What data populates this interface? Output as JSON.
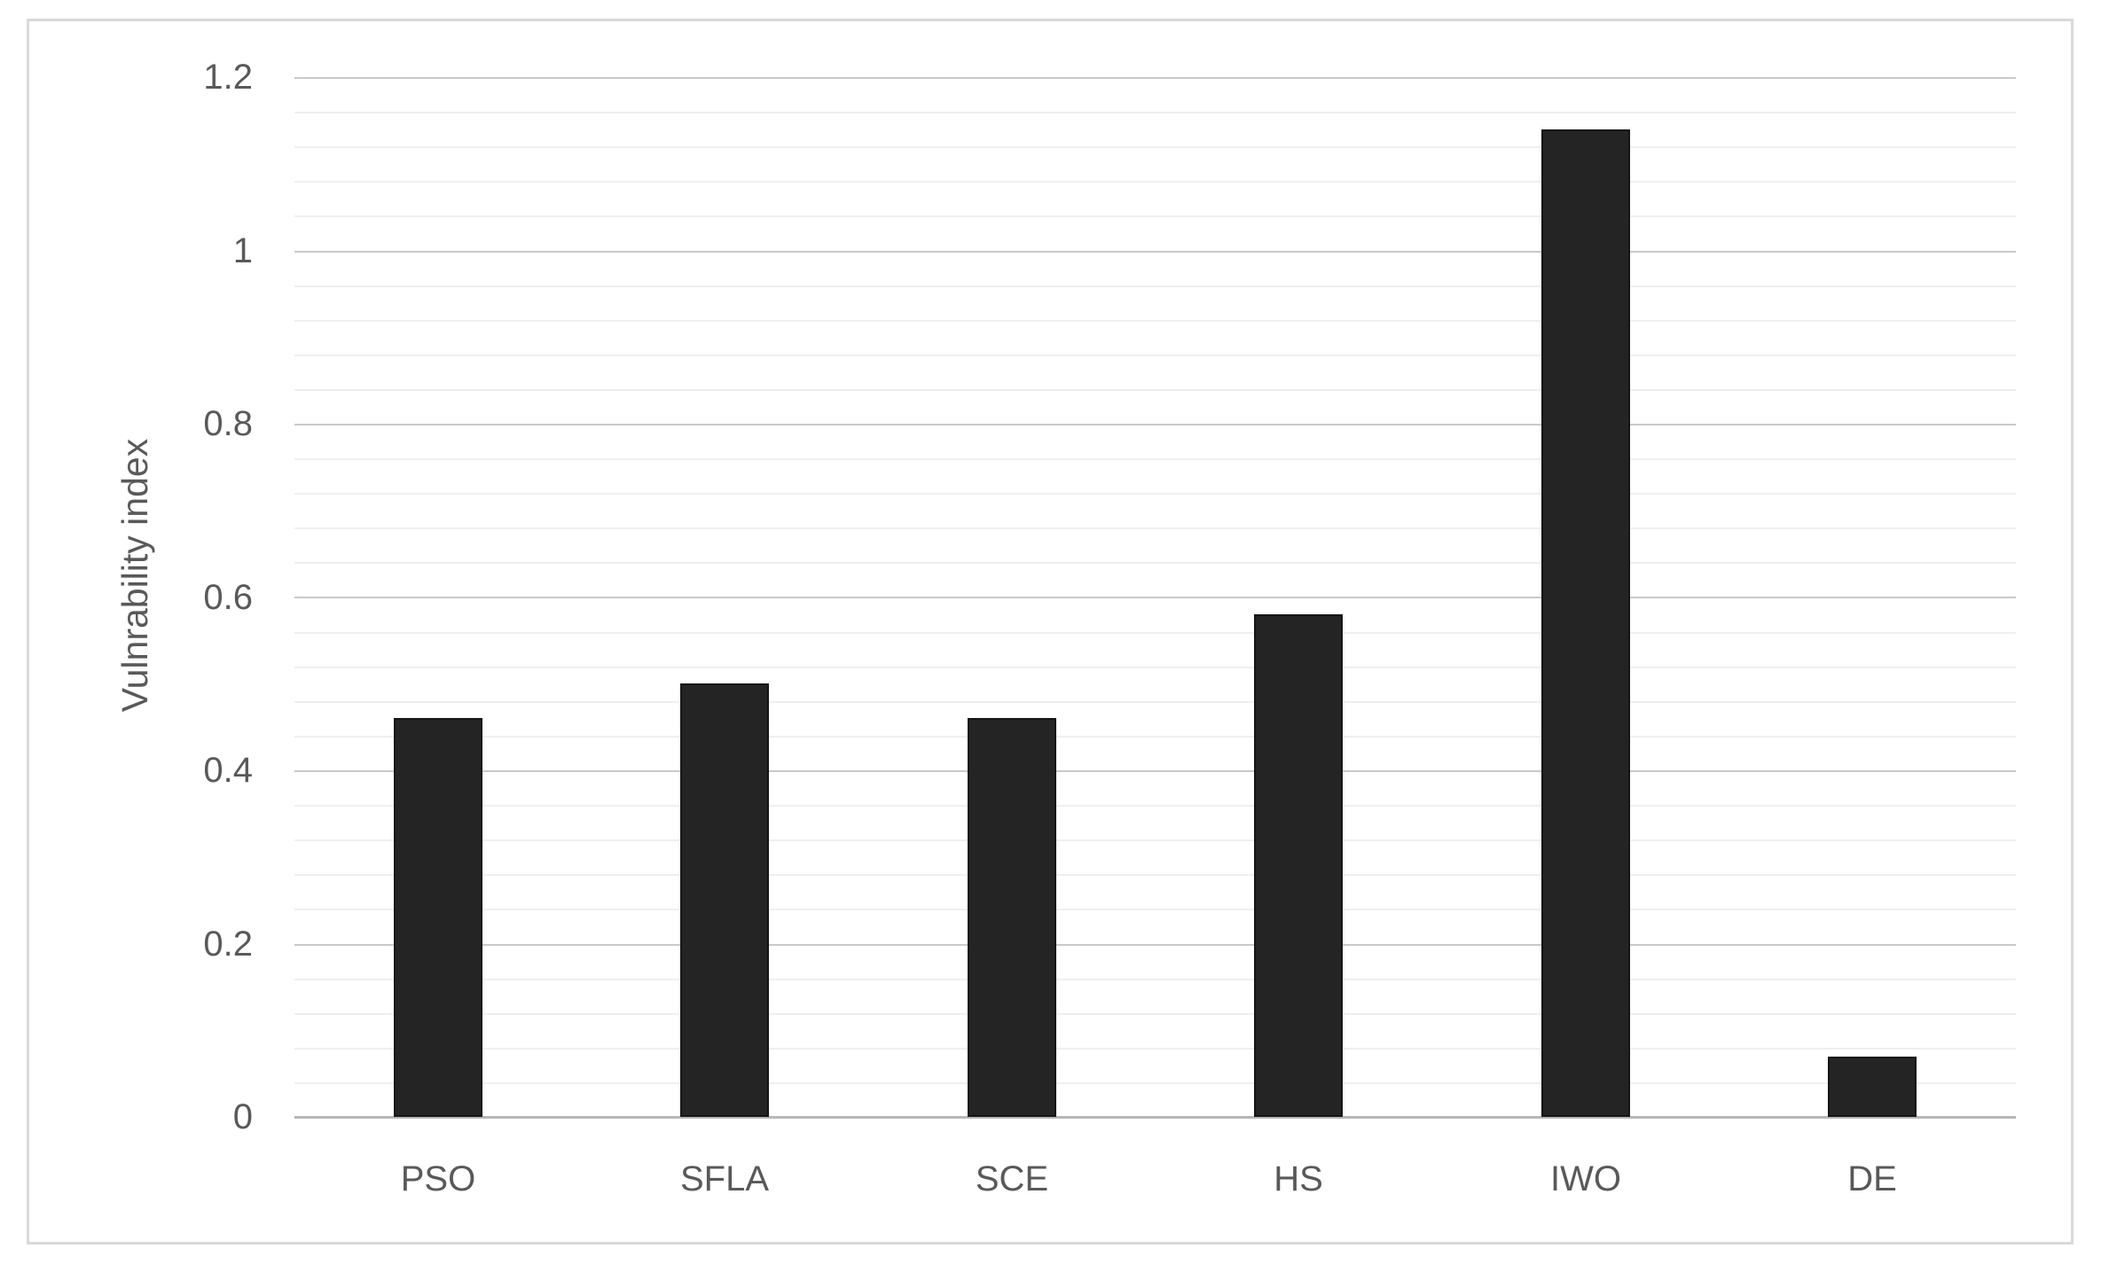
{
  "chart_data": {
    "type": "bar",
    "title": "",
    "categories": [
      "PSO",
      "SFLA",
      "SCE",
      "HS",
      "IWO",
      "DE"
    ],
    "values": [
      0.46,
      0.5,
      0.46,
      0.58,
      1.14,
      0.07
    ],
    "series": [
      {
        "name": "Vulnrability index",
        "values": [
          0.46,
          0.5,
          0.46,
          0.58,
          1.14,
          0.07
        ]
      }
    ],
    "xlabel": "",
    "ylabel": "Vulnrability index",
    "ylim": [
      0,
      1.2
    ],
    "y_ticks": [
      {
        "value": 0,
        "label": "0"
      },
      {
        "value": 0.2,
        "label": "0.2"
      },
      {
        "value": 0.4,
        "label": "0.4"
      },
      {
        "value": 0.6,
        "label": "0.6"
      },
      {
        "value": 0.8,
        "label": "0.8"
      },
      {
        "value": 1,
        "label": "1"
      },
      {
        "value": 1.2,
        "label": "1.2"
      }
    ],
    "major_gridline_unit": 0.2,
    "minor_gridline_unit": 0.04,
    "grid": "horizontal major+minor",
    "legend": "none",
    "colors": {
      "bar_fill": "#242424",
      "bar_border": "#161616",
      "major_gridline": "#c9c9c9",
      "minor_gridline": "#efefef",
      "axis_line": "#b7b7b7",
      "tick_label": "#595959",
      "figure_border": "#d9d9d9",
      "background": "#ffffff"
    }
  }
}
